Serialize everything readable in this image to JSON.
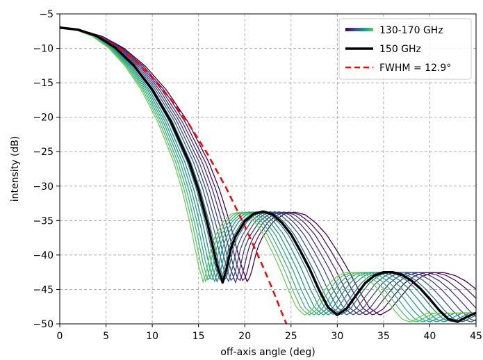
{
  "chart_data": {
    "type": "line",
    "xlabel": "off-axis angle (deg)",
    "ylabel": "intensity (dB)",
    "xlim": [
      0,
      45
    ],
    "ylim": [
      -50,
      -5
    ],
    "xticks": [
      0,
      5,
      10,
      15,
      20,
      25,
      30,
      35,
      40,
      45
    ],
    "yticks": [
      -5,
      -10,
      -15,
      -20,
      -25,
      -30,
      -35,
      -40,
      -45,
      -50
    ],
    "grid": true,
    "grid_style": "dashed",
    "legend_position": "top-right",
    "legend": [
      {
        "label": "130-170 GHz",
        "style": "gradient",
        "colors": [
          "#440154",
          "#3b528b",
          "#21918c",
          "#5ec962"
        ]
      },
      {
        "label": "150 GHz",
        "style": "solid",
        "color": "#000000"
      },
      {
        "label": "FWHM = 12.9°",
        "style": "dashed",
        "color": "#ff0000"
      }
    ],
    "series": [
      {
        "frequency_ghz": 150,
        "color": "#000000",
        "linewidth": 3.5,
        "points": [
          [
            0,
            -7.0
          ],
          [
            2,
            -7.3
          ],
          [
            4,
            -8.2
          ],
          [
            6,
            -9.9
          ],
          [
            8,
            -12.5
          ],
          [
            10,
            -16.0
          ],
          [
            12,
            -20.6
          ],
          [
            14,
            -26.6
          ],
          [
            15,
            -30.6
          ],
          [
            16,
            -35.6
          ],
          [
            17,
            -41.5
          ],
          [
            17.6,
            -44.0
          ],
          [
            18,
            -42.2
          ],
          [
            18.5,
            -39.0
          ],
          [
            19,
            -37.3
          ],
          [
            20,
            -35.1
          ],
          [
            21,
            -34.0
          ],
          [
            22,
            -33.7
          ],
          [
            23,
            -34.1
          ],
          [
            24,
            -35.3
          ],
          [
            25,
            -37.0
          ],
          [
            26,
            -39.4
          ],
          [
            27,
            -42.0
          ],
          [
            28,
            -45.0
          ],
          [
            29,
            -47.6
          ],
          [
            30,
            -48.7
          ],
          [
            31,
            -47.8
          ],
          [
            32,
            -45.9
          ],
          [
            33,
            -44.1
          ],
          [
            34,
            -43.0
          ],
          [
            35,
            -42.5
          ],
          [
            36,
            -42.5
          ],
          [
            37,
            -42.9
          ],
          [
            38,
            -43.7
          ],
          [
            39,
            -44.9
          ],
          [
            40,
            -46.4
          ],
          [
            41,
            -48.0
          ],
          [
            42,
            -49.3
          ],
          [
            43,
            -49.7
          ],
          [
            44,
            -49.0
          ],
          [
            45,
            -48.4
          ]
        ]
      }
    ],
    "fwhm_curve": {
      "fwhm_deg": 12.9,
      "color": "#ff0000",
      "points": [
        [
          0,
          -7.0
        ],
        [
          2,
          -7.3
        ],
        [
          4,
          -8.1
        ],
        [
          6,
          -9.6
        ],
        [
          8,
          -11.6
        ],
        [
          10,
          -14.2
        ],
        [
          12,
          -17.4
        ],
        [
          14,
          -21.1
        ],
        [
          16,
          -25.4
        ],
        [
          18,
          -30.3
        ],
        [
          20,
          -35.8
        ],
        [
          22,
          -41.8
        ],
        [
          23,
          -45.0
        ],
        [
          24,
          -48.4
        ],
        [
          24.5,
          -50.0
        ]
      ]
    },
    "frequency_sweep": {
      "frequencies_ghz": [
        130,
        133,
        136,
        139,
        142,
        145,
        148,
        150,
        152,
        155,
        158,
        161,
        164,
        167,
        170
      ],
      "colormap": "viridis"
    }
  }
}
